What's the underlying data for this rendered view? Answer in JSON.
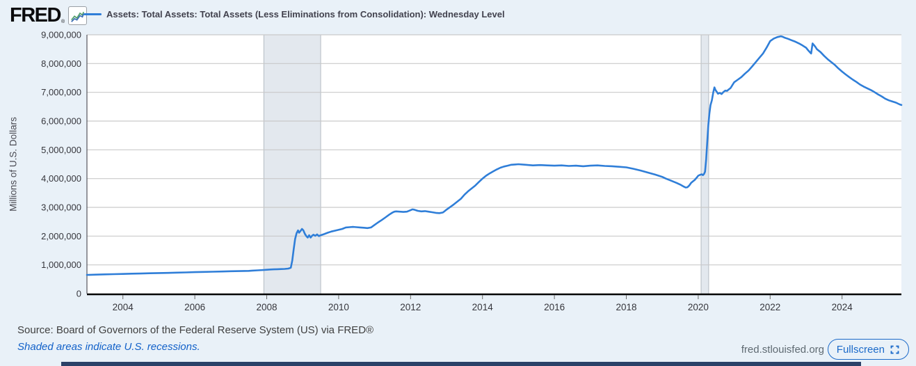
{
  "header": {
    "logo_text": "FRED",
    "logo_reg": "®",
    "legend_label": "Assets: Total Assets: Total Assets (Less Eliminations from Consolidation): Wednesday Level"
  },
  "footer": {
    "source_text": "Source: Board of Governors of the Federal Reserve System (US) via FRED®",
    "recession_note": "Shaded areas indicate U.S. recessions.",
    "site_url": "fred.stlouisfed.org",
    "fullscreen_label": "Fullscreen"
  },
  "colors": {
    "page-bg": "#e9f1f8",
    "plot-bg": "#ffffff",
    "grid": "#c9c9c9",
    "axis-black": "#000000",
    "left-axis": "#55555d",
    "tick-text": "#36363c",
    "line": "#2f7ed8",
    "recession-fill": "#e3e8ee",
    "recession-border": "#b3bac2",
    "link-blue": "#1261c9",
    "source-text": "#404040",
    "url-text": "#5f6a72",
    "button-blue": "#1b6ac9",
    "bottom-bar": "#2b4168"
  },
  "chart_data": {
    "type": "line",
    "title": "",
    "xlabel": "",
    "ylabel": "Millions of U.S. Dollars",
    "legend_position": "top",
    "grid": "horizontal",
    "x_domain": [
      2003.0,
      2025.65
    ],
    "ylim": [
      0,
      9000000
    ],
    "y_ticks": [
      {
        "value": 0,
        "label": "0"
      },
      {
        "value": 1000000,
        "label": "1,000,000"
      },
      {
        "value": 2000000,
        "label": "2,000,000"
      },
      {
        "value": 3000000,
        "label": "3,000,000"
      },
      {
        "value": 4000000,
        "label": "4,000,000"
      },
      {
        "value": 5000000,
        "label": "5,000,000"
      },
      {
        "value": 6000000,
        "label": "6,000,000"
      },
      {
        "value": 7000000,
        "label": "7,000,000"
      },
      {
        "value": 8000000,
        "label": "8,000,000"
      },
      {
        "value": 9000000,
        "label": "9,000,000"
      }
    ],
    "x_ticks": [
      {
        "value": 2004,
        "label": "2004"
      },
      {
        "value": 2006,
        "label": "2006"
      },
      {
        "value": 2008,
        "label": "2008"
      },
      {
        "value": 2010,
        "label": "2010"
      },
      {
        "value": 2012,
        "label": "2012"
      },
      {
        "value": 2014,
        "label": "2014"
      },
      {
        "value": 2016,
        "label": "2016"
      },
      {
        "value": 2018,
        "label": "2018"
      },
      {
        "value": 2020,
        "label": "2020"
      },
      {
        "value": 2022,
        "label": "2022"
      },
      {
        "value": 2024,
        "label": "2024"
      }
    ],
    "recession_bands": [
      [
        2007.92,
        2009.5
      ],
      [
        2020.08,
        2020.29
      ]
    ],
    "series": [
      {
        "name": "Assets: Total Assets: Total Assets (Less Eliminations from Consolidation): Wednesday Level",
        "units": "Millions of U.S. Dollars",
        "points": [
          [
            2003.0,
            650000
          ],
          [
            2003.25,
            660000
          ],
          [
            2003.5,
            670000
          ],
          [
            2003.75,
            678000
          ],
          [
            2004.0,
            685000
          ],
          [
            2004.25,
            695000
          ],
          [
            2004.5,
            700000
          ],
          [
            2004.75,
            708000
          ],
          [
            2005.0,
            715000
          ],
          [
            2005.25,
            722000
          ],
          [
            2005.5,
            730000
          ],
          [
            2005.75,
            738000
          ],
          [
            2006.0,
            748000
          ],
          [
            2006.25,
            755000
          ],
          [
            2006.5,
            762000
          ],
          [
            2006.75,
            770000
          ],
          [
            2007.0,
            778000
          ],
          [
            2007.25,
            785000
          ],
          [
            2007.5,
            790000
          ],
          [
            2007.6,
            800000
          ],
          [
            2007.75,
            810000
          ],
          [
            2008.0,
            830000
          ],
          [
            2008.1,
            840000
          ],
          [
            2008.2,
            845000
          ],
          [
            2008.3,
            850000
          ],
          [
            2008.4,
            855000
          ],
          [
            2008.5,
            860000
          ],
          [
            2008.6,
            870000
          ],
          [
            2008.67,
            900000
          ],
          [
            2008.71,
            1150000
          ],
          [
            2008.75,
            1550000
          ],
          [
            2008.79,
            1900000
          ],
          [
            2008.83,
            2100000
          ],
          [
            2008.87,
            2200000
          ],
          [
            2008.9,
            2120000
          ],
          [
            2008.94,
            2180000
          ],
          [
            2008.98,
            2250000
          ],
          [
            2009.02,
            2200000
          ],
          [
            2009.06,
            2080000
          ],
          [
            2009.1,
            2000000
          ],
          [
            2009.14,
            1950000
          ],
          [
            2009.18,
            2030000
          ],
          [
            2009.22,
            1950000
          ],
          [
            2009.26,
            2010000
          ],
          [
            2009.3,
            2050000
          ],
          [
            2009.35,
            2010000
          ],
          [
            2009.4,
            2060000
          ],
          [
            2009.45,
            2000000
          ],
          [
            2009.5,
            2030000
          ],
          [
            2009.6,
            2070000
          ],
          [
            2009.7,
            2120000
          ],
          [
            2009.8,
            2160000
          ],
          [
            2009.9,
            2190000
          ],
          [
            2010.0,
            2220000
          ],
          [
            2010.1,
            2250000
          ],
          [
            2010.2,
            2300000
          ],
          [
            2010.3,
            2310000
          ],
          [
            2010.4,
            2320000
          ],
          [
            2010.5,
            2310000
          ],
          [
            2010.6,
            2300000
          ],
          [
            2010.7,
            2290000
          ],
          [
            2010.8,
            2280000
          ],
          [
            2010.9,
            2300000
          ],
          [
            2011.0,
            2390000
          ],
          [
            2011.1,
            2480000
          ],
          [
            2011.2,
            2560000
          ],
          [
            2011.3,
            2650000
          ],
          [
            2011.4,
            2740000
          ],
          [
            2011.5,
            2820000
          ],
          [
            2011.55,
            2850000
          ],
          [
            2011.6,
            2860000
          ],
          [
            2011.7,
            2850000
          ],
          [
            2011.8,
            2840000
          ],
          [
            2011.9,
            2850000
          ],
          [
            2012.0,
            2900000
          ],
          [
            2012.05,
            2930000
          ],
          [
            2012.1,
            2920000
          ],
          [
            2012.2,
            2880000
          ],
          [
            2012.3,
            2860000
          ],
          [
            2012.4,
            2870000
          ],
          [
            2012.5,
            2850000
          ],
          [
            2012.6,
            2830000
          ],
          [
            2012.7,
            2810000
          ],
          [
            2012.8,
            2800000
          ],
          [
            2012.9,
            2820000
          ],
          [
            2012.95,
            2870000
          ],
          [
            2013.0,
            2920000
          ],
          [
            2013.1,
            3010000
          ],
          [
            2013.2,
            3100000
          ],
          [
            2013.3,
            3200000
          ],
          [
            2013.4,
            3300000
          ],
          [
            2013.5,
            3440000
          ],
          [
            2013.6,
            3560000
          ],
          [
            2013.7,
            3660000
          ],
          [
            2013.8,
            3760000
          ],
          [
            2013.9,
            3880000
          ],
          [
            2014.0,
            4000000
          ],
          [
            2014.1,
            4100000
          ],
          [
            2014.2,
            4180000
          ],
          [
            2014.3,
            4250000
          ],
          [
            2014.4,
            4320000
          ],
          [
            2014.5,
            4380000
          ],
          [
            2014.6,
            4420000
          ],
          [
            2014.7,
            4450000
          ],
          [
            2014.8,
            4480000
          ],
          [
            2014.9,
            4490000
          ],
          [
            2015.0,
            4500000
          ],
          [
            2015.2,
            4480000
          ],
          [
            2015.4,
            4460000
          ],
          [
            2015.6,
            4470000
          ],
          [
            2015.8,
            4460000
          ],
          [
            2016.0,
            4450000
          ],
          [
            2016.2,
            4460000
          ],
          [
            2016.4,
            4440000
          ],
          [
            2016.6,
            4450000
          ],
          [
            2016.8,
            4430000
          ],
          [
            2017.0,
            4450000
          ],
          [
            2017.2,
            4460000
          ],
          [
            2017.4,
            4440000
          ],
          [
            2017.6,
            4430000
          ],
          [
            2017.8,
            4410000
          ],
          [
            2018.0,
            4390000
          ],
          [
            2018.2,
            4340000
          ],
          [
            2018.4,
            4280000
          ],
          [
            2018.6,
            4210000
          ],
          [
            2018.8,
            4140000
          ],
          [
            2019.0,
            4060000
          ],
          [
            2019.1,
            4000000
          ],
          [
            2019.2,
            3950000
          ],
          [
            2019.3,
            3900000
          ],
          [
            2019.4,
            3850000
          ],
          [
            2019.5,
            3790000
          ],
          [
            2019.6,
            3720000
          ],
          [
            2019.65,
            3690000
          ],
          [
            2019.7,
            3700000
          ],
          [
            2019.75,
            3760000
          ],
          [
            2019.8,
            3850000
          ],
          [
            2019.85,
            3900000
          ],
          [
            2019.9,
            3950000
          ],
          [
            2019.95,
            4020000
          ],
          [
            2020.0,
            4100000
          ],
          [
            2020.05,
            4130000
          ],
          [
            2020.1,
            4150000
          ],
          [
            2020.13,
            4120000
          ],
          [
            2020.16,
            4160000
          ],
          [
            2020.19,
            4240000
          ],
          [
            2020.22,
            4670000
          ],
          [
            2020.25,
            5250000
          ],
          [
            2020.28,
            5850000
          ],
          [
            2020.31,
            6250000
          ],
          [
            2020.34,
            6550000
          ],
          [
            2020.38,
            6720000
          ],
          [
            2020.42,
            7010000
          ],
          [
            2020.45,
            7170000
          ],
          [
            2020.48,
            7080000
          ],
          [
            2020.52,
            7010000
          ],
          [
            2020.55,
            6950000
          ],
          [
            2020.6,
            6980000
          ],
          [
            2020.65,
            6940000
          ],
          [
            2020.7,
            7010000
          ],
          [
            2020.75,
            7060000
          ],
          [
            2020.8,
            7050000
          ],
          [
            2020.85,
            7100000
          ],
          [
            2020.9,
            7150000
          ],
          [
            2020.95,
            7250000
          ],
          [
            2021.0,
            7350000
          ],
          [
            2021.1,
            7440000
          ],
          [
            2021.2,
            7530000
          ],
          [
            2021.3,
            7650000
          ],
          [
            2021.4,
            7760000
          ],
          [
            2021.5,
            7900000
          ],
          [
            2021.6,
            8050000
          ],
          [
            2021.7,
            8200000
          ],
          [
            2021.8,
            8350000
          ],
          [
            2021.9,
            8550000
          ],
          [
            2022.0,
            8780000
          ],
          [
            2022.1,
            8870000
          ],
          [
            2022.2,
            8920000
          ],
          [
            2022.3,
            8950000
          ],
          [
            2022.35,
            8930000
          ],
          [
            2022.4,
            8900000
          ],
          [
            2022.5,
            8860000
          ],
          [
            2022.6,
            8810000
          ],
          [
            2022.7,
            8760000
          ],
          [
            2022.8,
            8700000
          ],
          [
            2022.9,
            8630000
          ],
          [
            2023.0,
            8550000
          ],
          [
            2023.05,
            8470000
          ],
          [
            2023.1,
            8400000
          ],
          [
            2023.14,
            8350000
          ],
          [
            2023.18,
            8700000
          ],
          [
            2023.22,
            8640000
          ],
          [
            2023.26,
            8580000
          ],
          [
            2023.3,
            8500000
          ],
          [
            2023.4,
            8400000
          ],
          [
            2023.5,
            8270000
          ],
          [
            2023.6,
            8150000
          ],
          [
            2023.7,
            8050000
          ],
          [
            2023.8,
            7950000
          ],
          [
            2023.9,
            7830000
          ],
          [
            2024.0,
            7720000
          ],
          [
            2024.1,
            7620000
          ],
          [
            2024.2,
            7530000
          ],
          [
            2024.3,
            7440000
          ],
          [
            2024.4,
            7360000
          ],
          [
            2024.5,
            7270000
          ],
          [
            2024.6,
            7200000
          ],
          [
            2024.7,
            7140000
          ],
          [
            2024.8,
            7080000
          ],
          [
            2024.9,
            7010000
          ],
          [
            2025.0,
            6930000
          ],
          [
            2025.1,
            6860000
          ],
          [
            2025.2,
            6780000
          ],
          [
            2025.3,
            6720000
          ],
          [
            2025.4,
            6680000
          ],
          [
            2025.5,
            6640000
          ],
          [
            2025.6,
            6580000
          ],
          [
            2025.65,
            6560000
          ]
        ]
      }
    ]
  }
}
